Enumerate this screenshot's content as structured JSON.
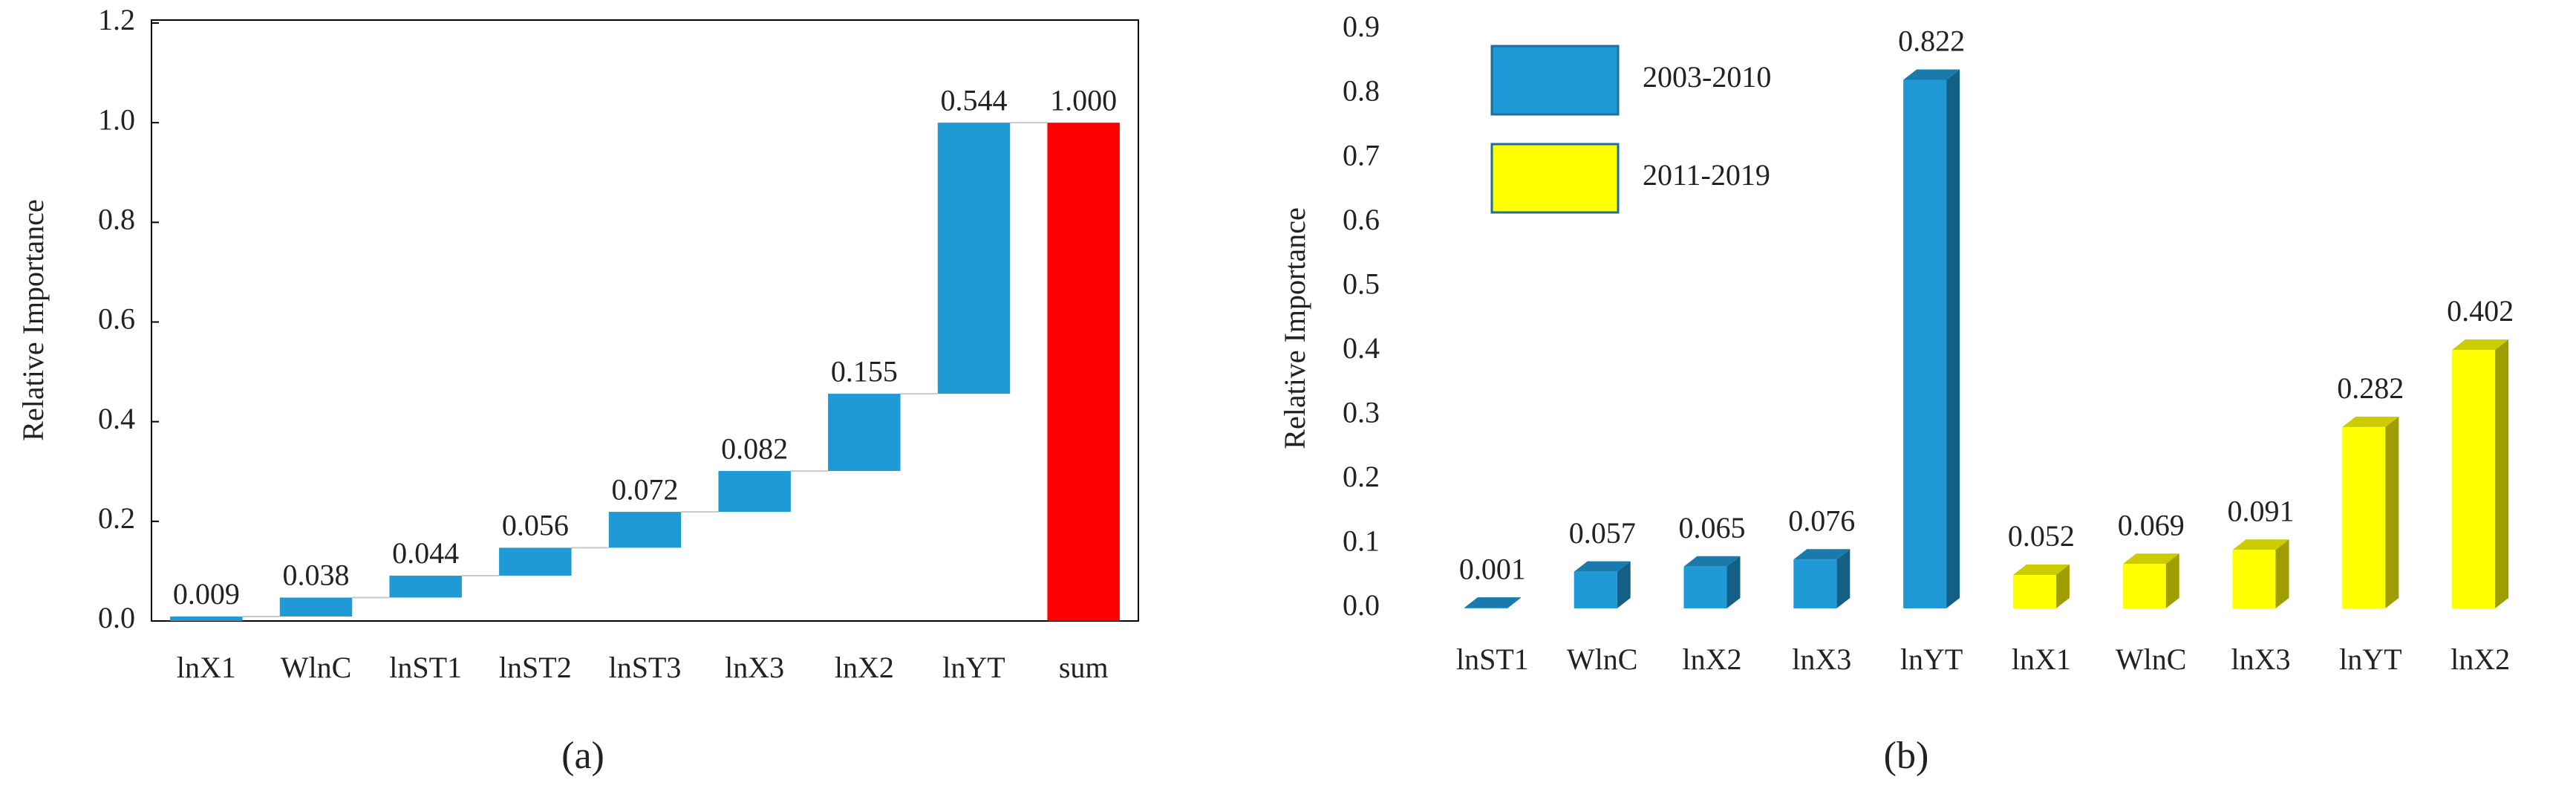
{
  "chart_data": [
    {
      "type": "waterfall",
      "y_label": "Relative Importance",
      "caption": "(a)",
      "categories": [
        "lnX1",
        "WlnC",
        "lnST1",
        "lnST2",
        "lnST3",
        "lnX3",
        "lnX2",
        "lnYT",
        "sum"
      ],
      "values": [
        0.009,
        0.038,
        0.044,
        0.056,
        0.072,
        0.082,
        0.155,
        0.544,
        1.0
      ],
      "value_labels": [
        "0.009",
        "0.038",
        "0.044",
        "0.056",
        "0.072",
        "0.082",
        "0.155",
        "0.544",
        "1.000"
      ],
      "color": "#1f9ad6",
      "total_color": "#ff0000",
      "ylim": [
        0,
        1.2
      ],
      "yticks": [
        {
          "value": 0,
          "label": "0.0"
        },
        {
          "value": 0.2,
          "label": "0.2"
        },
        {
          "value": 0.4,
          "label": "0.4"
        },
        {
          "value": 0.6,
          "label": "0.6"
        },
        {
          "value": 0.8,
          "label": "0.8"
        },
        {
          "value": 1.0,
          "label": "1.0"
        },
        {
          "value": 1.2,
          "label": "1.2"
        }
      ]
    },
    {
      "type": "bar3d",
      "y_label": "Relative Importance",
      "caption": "(b)",
      "categories": [
        "lnST1",
        "WlnC",
        "lnX2",
        "lnX3",
        "lnYT",
        "lnX1",
        "WlnC",
        "lnX3",
        "lnYT",
        "lnX2"
      ],
      "series": [
        {
          "name": "2003-2010",
          "color": "#1f9ad6",
          "values": [
            0.001,
            0.057,
            0.065,
            0.076,
            0.822,
            null,
            null,
            null,
            null,
            null
          ]
        },
        {
          "name": "2011-2019",
          "color": "#ffff00",
          "values": [
            null,
            null,
            null,
            null,
            null,
            0.052,
            0.069,
            0.091,
            0.282,
            0.402
          ]
        }
      ],
      "ylim": [
        0,
        0.9
      ],
      "yticks": [
        {
          "value": 0,
          "label": "0.0"
        },
        0.1,
        0.2,
        0.3,
        0.4,
        0.5,
        0.6,
        0.7,
        0.8,
        0.9
      ]
    }
  ]
}
